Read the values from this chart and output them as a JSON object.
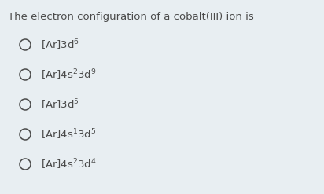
{
  "title": "The electron configuration of a cobalt(III) ion is",
  "background_color": "#e8eef2",
  "text_color": "#4a4a4a",
  "title_fontsize": 9.5,
  "option_fontsize": 9.5,
  "options_text": [
    "[Ar]3d$^{6}$",
    "[Ar]4s$^{2}$3d$^{9}$",
    "[Ar]3d$^{5}$",
    "[Ar]4s$^{1}$3d$^{5}$",
    "[Ar]4s$^{2}$3d$^{4}$"
  ],
  "figwidth": 4.12,
  "figheight": 2.47,
  "dpi": 100
}
